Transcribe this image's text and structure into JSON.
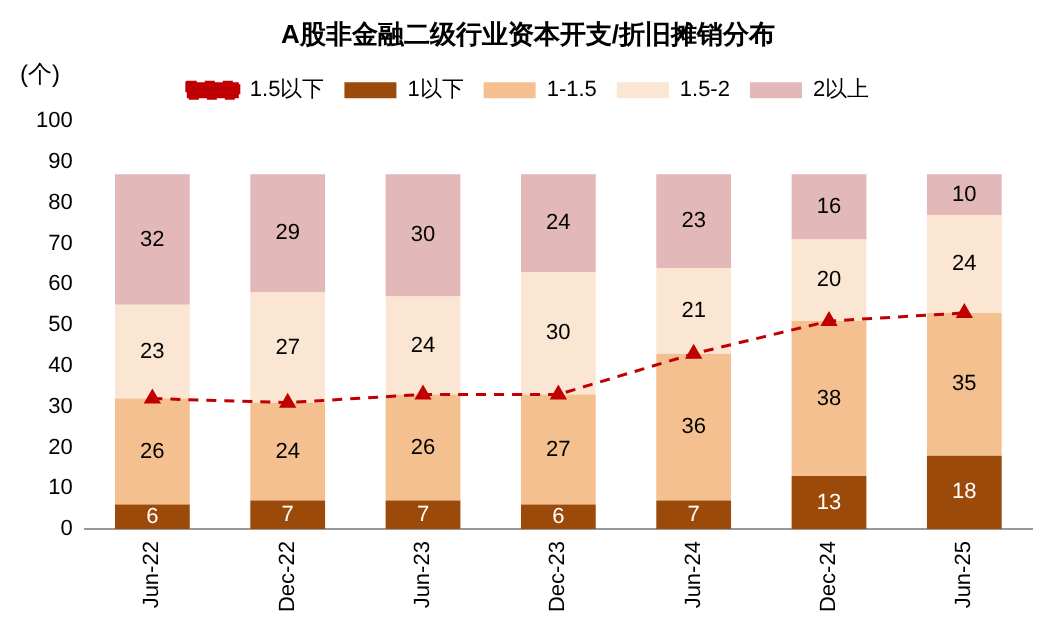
{
  "chart_data": {
    "type": "bar",
    "title": "A股非金融二级行业资本开支/折旧摊销分布",
    "ylabel": "(个)",
    "categories": [
      "Jun-22",
      "Dec-22",
      "Jun-23",
      "Dec-23",
      "Jun-24",
      "Dec-24",
      "Jun-25"
    ],
    "stacked": true,
    "ylim": [
      0,
      100
    ],
    "yticks": [
      0,
      10,
      20,
      30,
      40,
      50,
      60,
      70,
      80,
      90,
      100
    ],
    "grid": false,
    "legend": "top",
    "series": [
      {
        "name": "1以下",
        "color": "#9c4a0a",
        "values": [
          6,
          7,
          7,
          6,
          7,
          13,
          18
        ],
        "value_labels": [
          "6",
          "7",
          "7",
          "6",
          "7",
          "13",
          "18"
        ]
      },
      {
        "name": "1-1.5",
        "color": "#f4c08f",
        "values": [
          26,
          24,
          26,
          27,
          36,
          38,
          35
        ],
        "value_labels": [
          "26",
          "24",
          "26",
          "27",
          "36",
          "38",
          "35"
        ]
      },
      {
        "name": "1.5-2",
        "color": "#fbe5d3",
        "values": [
          23,
          27,
          24,
          30,
          21,
          20,
          24
        ],
        "value_labels": [
          "23",
          "27",
          "24",
          "30",
          "21",
          "20",
          "24"
        ]
      },
      {
        "name": "2以上",
        "color": "#e2b8b8",
        "values": [
          32,
          29,
          30,
          24,
          23,
          16,
          10
        ],
        "value_labels": [
          "32",
          "29",
          "30",
          "24",
          "23",
          "16",
          "10"
        ]
      },
      {
        "name": "1.5以下",
        "type": "line",
        "color": "#c00000",
        "values": [
          32,
          31,
          33,
          33,
          43,
          51,
          53
        ],
        "marker": "triangle",
        "line_style": "dashed"
      }
    ]
  }
}
